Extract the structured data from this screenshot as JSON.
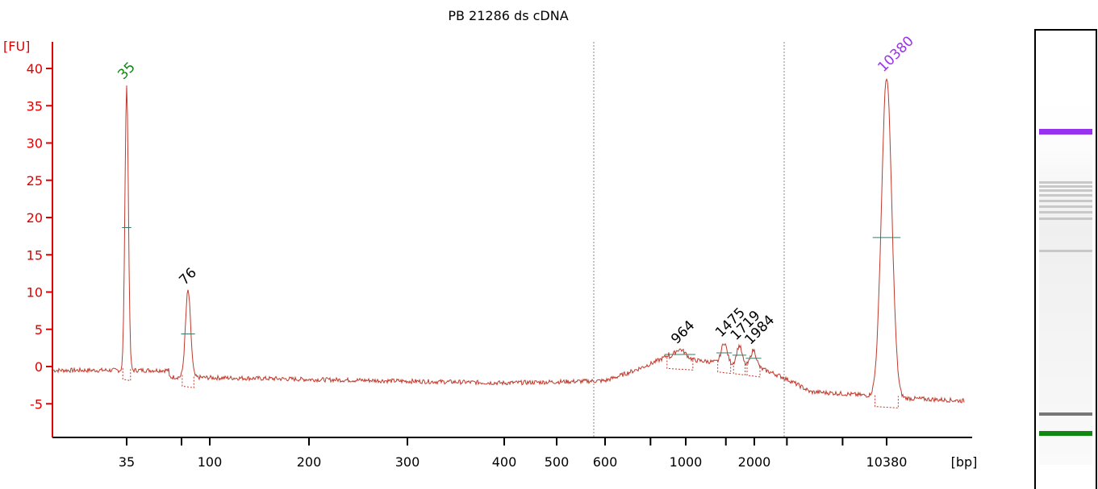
{
  "title": "PB 21286 ds cDNA",
  "chart_data": {
    "type": "line",
    "title": "PB 21286 ds cDNA",
    "ylabel": "[FU]",
    "xlabel": "[bp]",
    "ylim": [
      -9,
      43
    ],
    "y_ticks": [
      "-5",
      "0",
      "5",
      "10",
      "15",
      "20",
      "25",
      "30",
      "35",
      "40"
    ],
    "x_ticks": [
      "35",
      "100",
      "200",
      "300",
      "400",
      "500",
      "600",
      "1000",
      "2000",
      "10380"
    ],
    "grid": false,
    "colors": {
      "trace": "#c0392b",
      "axis": "#e00000",
      "lower_marker": "#118811",
      "upper_marker": "#9932ee",
      "peak_label": "#000000"
    },
    "peaks": [
      {
        "label": "35",
        "size_bp": 35,
        "height": 37.8,
        "color": "#118811",
        "kind": "lower-marker"
      },
      {
        "label": "76",
        "size_bp": 76,
        "height": 10.2,
        "color": "#000000",
        "kind": "sample"
      },
      {
        "label": "964",
        "size_bp": 964,
        "height": 2.3,
        "color": "#000000",
        "kind": "sample"
      },
      {
        "label": "1475",
        "size_bp": 1475,
        "height": 3.2,
        "color": "#000000",
        "kind": "sample"
      },
      {
        "label": "1719",
        "size_bp": 1719,
        "height": 2.8,
        "color": "#000000",
        "kind": "sample"
      },
      {
        "label": "1984",
        "size_bp": 1984,
        "height": 2.2,
        "color": "#000000",
        "kind": "sample"
      },
      {
        "label": "10380",
        "size_bp": 10380,
        "height": 38.8,
        "color": "#9932ee",
        "kind": "upper-marker"
      }
    ],
    "baseline_fu": -1.8,
    "region_bounds_bp": [
      575,
      2900
    ]
  },
  "gel": {
    "upper_marker_color": "#9932ee",
    "lower_marker_color": "#118811"
  }
}
